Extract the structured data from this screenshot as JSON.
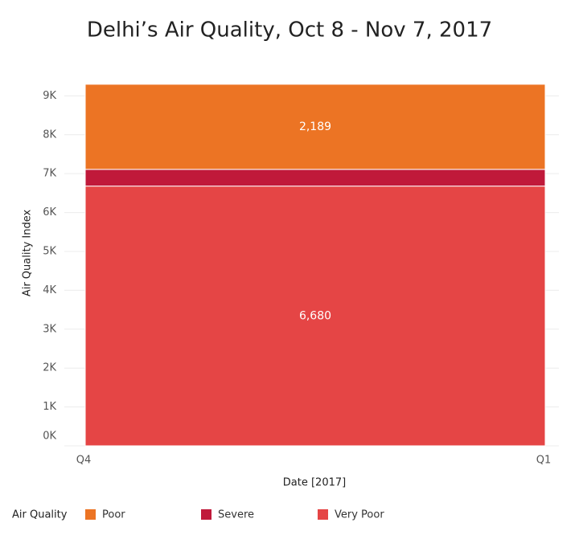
{
  "chart_data": {
    "type": "stacked-bar",
    "title": "Delhi’s Air Quality, Oct 8 - Nov 7, 2017",
    "y_label": "Air Quality Index",
    "x_label": "Date [2017]",
    "xticks": [
      "Q4",
      "Q1"
    ],
    "legend_title": "Air Quality",
    "ylim": [
      0,
      9400
    ],
    "yticks": [
      {
        "value": 0,
        "label": "0K"
      },
      {
        "value": 1000,
        "label": "1K"
      },
      {
        "value": 2000,
        "label": "2K"
      },
      {
        "value": 3000,
        "label": "3K"
      },
      {
        "value": 4000,
        "label": "4K"
      },
      {
        "value": 5000,
        "label": "5K"
      },
      {
        "value": 6000,
        "label": "6K"
      },
      {
        "value": 7000,
        "label": "7K"
      },
      {
        "value": 8000,
        "label": "8K"
      },
      {
        "value": 9000,
        "label": "9K"
      }
    ],
    "grid": true,
    "series": [
      {
        "name": "Poor",
        "color": "#ec7424",
        "values": [
          2189
        ],
        "value_labels": [
          "2,189"
        ]
      },
      {
        "name": "Severe",
        "color": "#c0193a",
        "values": [
          430
        ]
      },
      {
        "name": "Very Poor",
        "color": "#e54545",
        "values": [
          6680
        ],
        "value_labels": [
          "6,680"
        ]
      }
    ]
  }
}
